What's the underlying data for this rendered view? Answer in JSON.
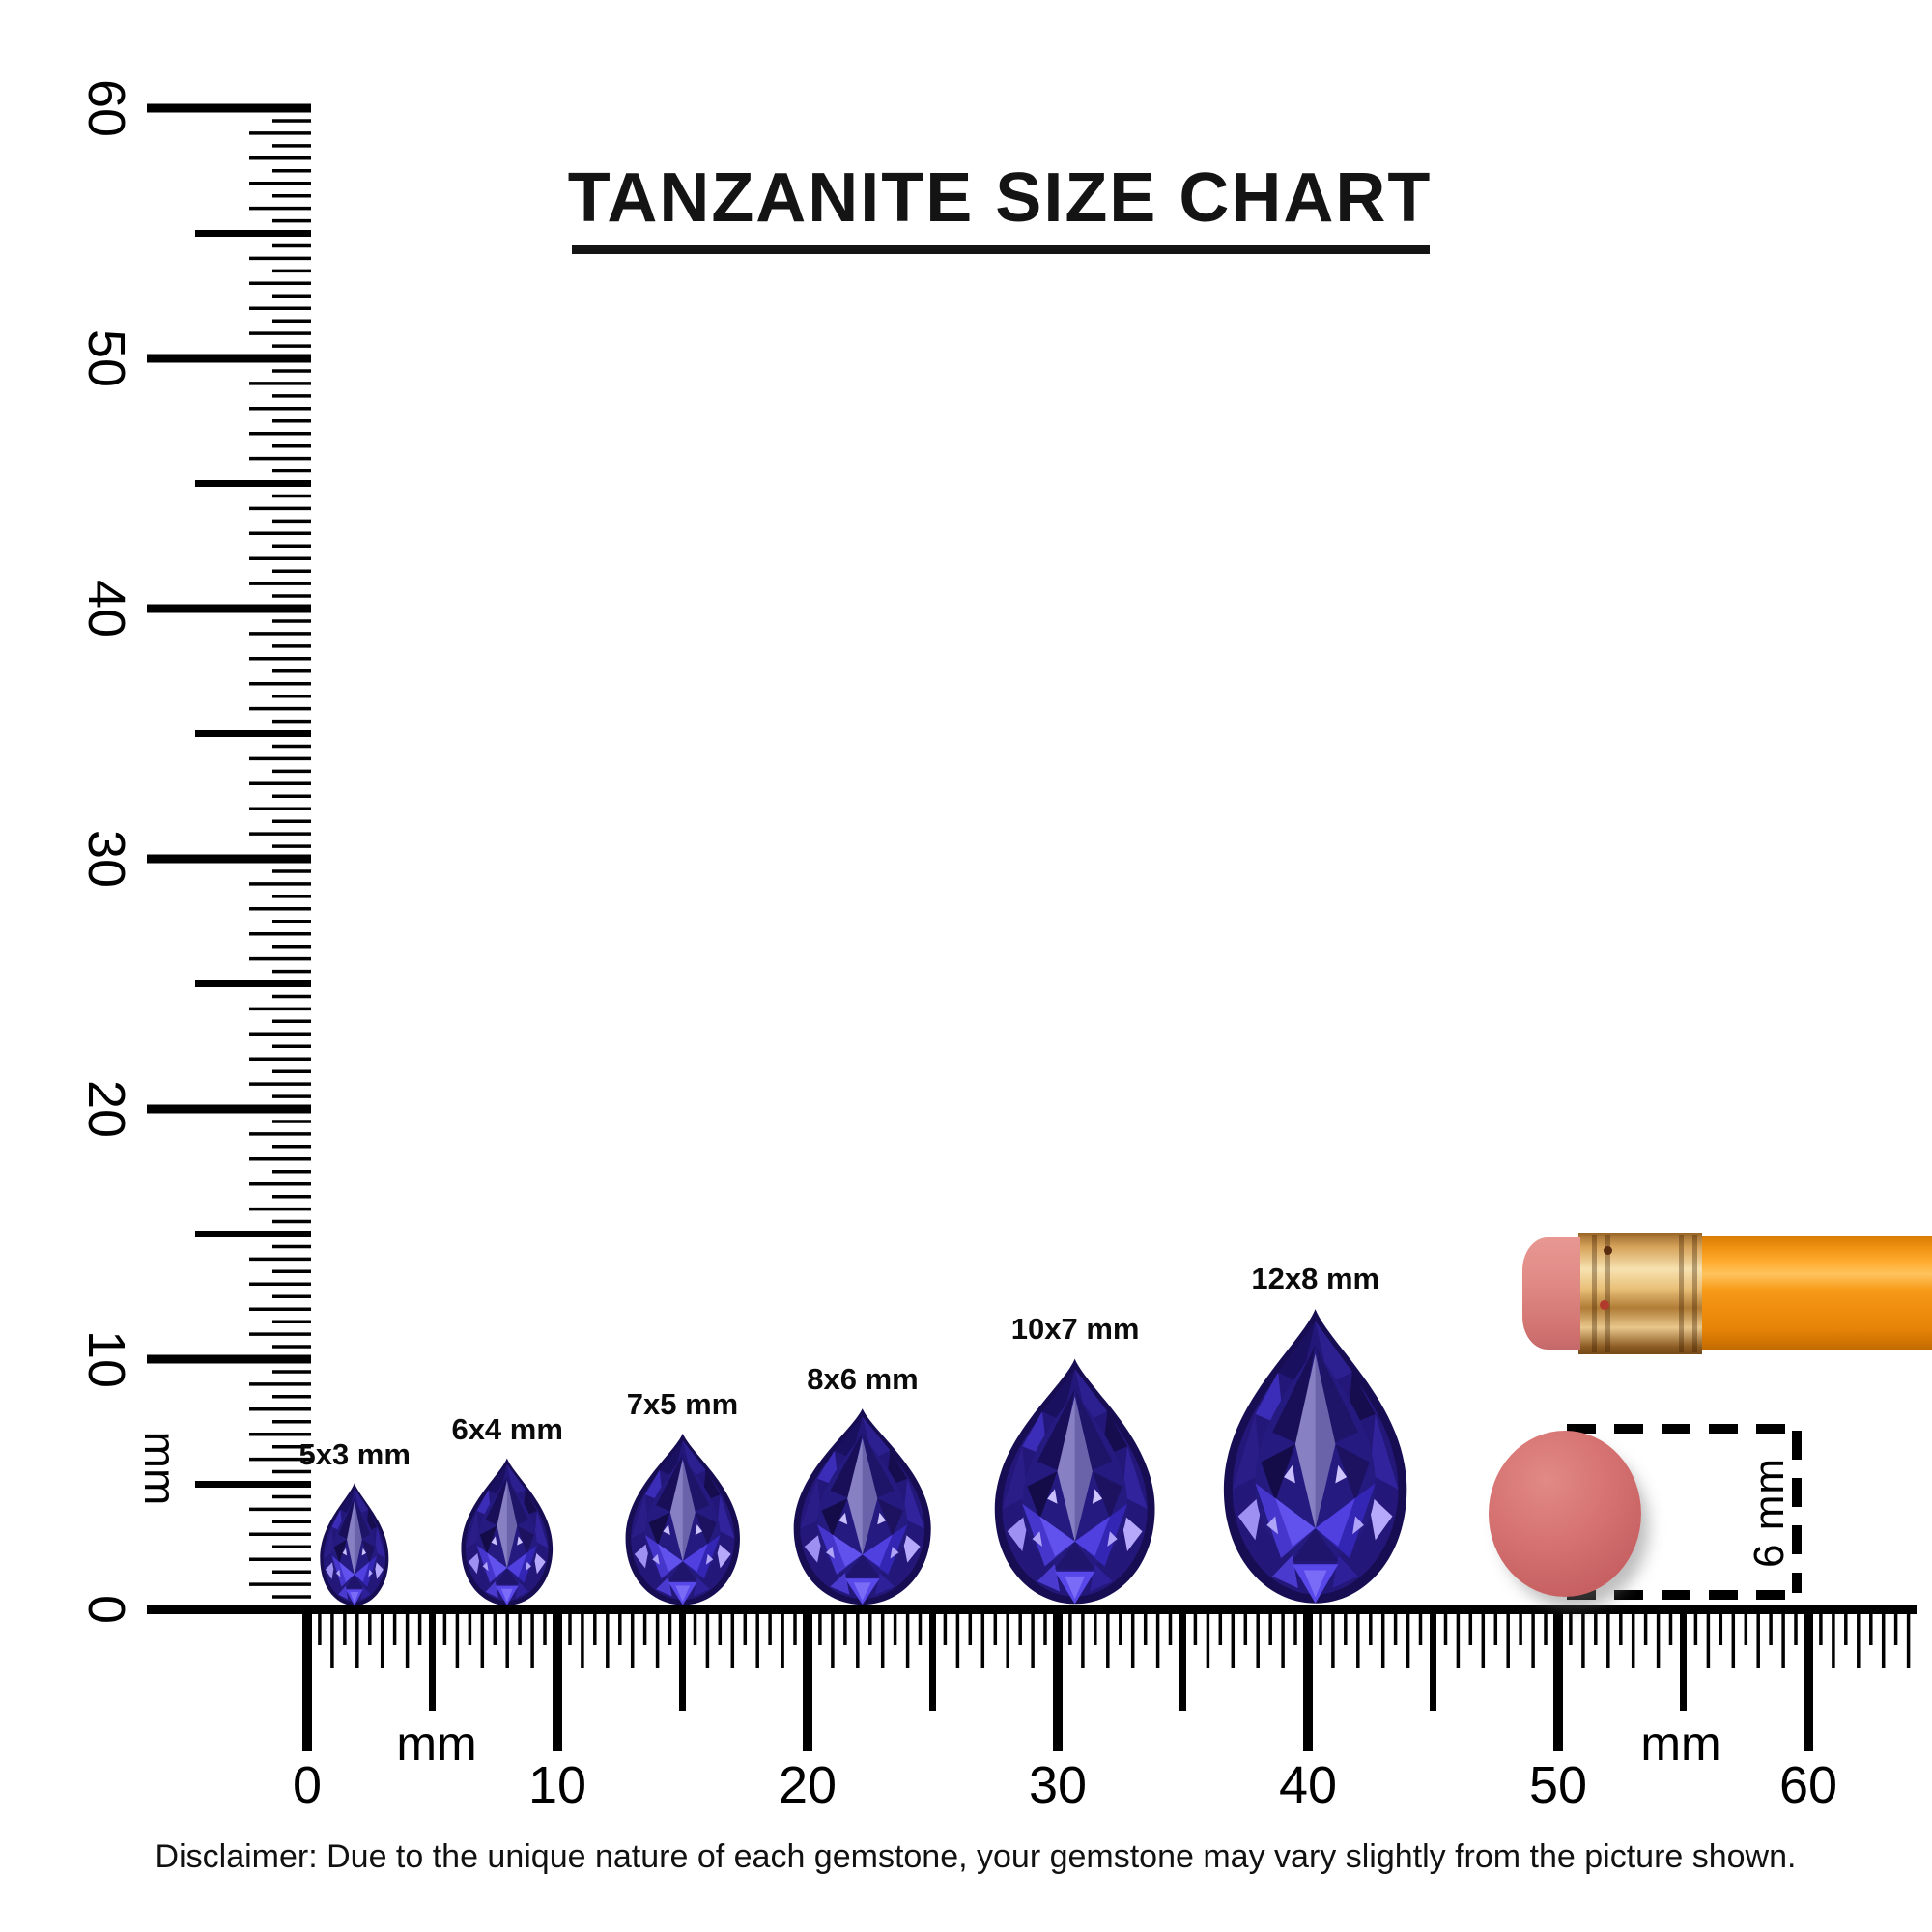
{
  "title": "TANZANITE SIZE CHART",
  "vertical_ruler": {
    "unit_label": "mm",
    "tick_labels": [
      "60",
      "50",
      "40",
      "30",
      "20",
      "10",
      "0"
    ]
  },
  "horizontal_ruler": {
    "unit_label_left": "mm",
    "unit_label_right": "mm",
    "tick_labels": [
      "0",
      "10",
      "20",
      "30",
      "40",
      "50",
      "60"
    ]
  },
  "gems": [
    {
      "label": "5x3 mm",
      "length_mm": 5,
      "width_mm": 3,
      "center_mm": 1.9
    },
    {
      "label": "6x4 mm",
      "length_mm": 6,
      "width_mm": 4,
      "center_mm": 8.0
    },
    {
      "label": "7x5 mm",
      "length_mm": 7,
      "width_mm": 5,
      "center_mm": 15.0
    },
    {
      "label": "8x6 mm",
      "length_mm": 8,
      "width_mm": 6,
      "center_mm": 22.2
    },
    {
      "label": "10x7 mm",
      "length_mm": 10,
      "width_mm": 7,
      "center_mm": 30.7
    },
    {
      "label": "12x8 mm",
      "length_mm": 12,
      "width_mm": 8,
      "center_mm": 40.3
    }
  ],
  "scale_reference": {
    "round_eraser_height_label": "6 mm",
    "objects": [
      "pencil",
      "round-eraser"
    ]
  },
  "disclaimer": "Disclaimer: Due to the unique nature of each gemstone, your gemstone may vary slightly from the picture shown.",
  "colors": {
    "ink": "#000000",
    "gem_dark": "#160d52",
    "gem_mid": "#251a80",
    "gem_violet": "#4636cc",
    "gem_bright": "#5f4ef2",
    "gem_light": "#9e90f2",
    "gem_pale": "#c9bffc",
    "pencil_body_orange": "#f79a18",
    "ferrule_gold": "#d7a45c",
    "pencil_eraser_pink": "#e08a85",
    "round_eraser_coral": "#d57170"
  }
}
